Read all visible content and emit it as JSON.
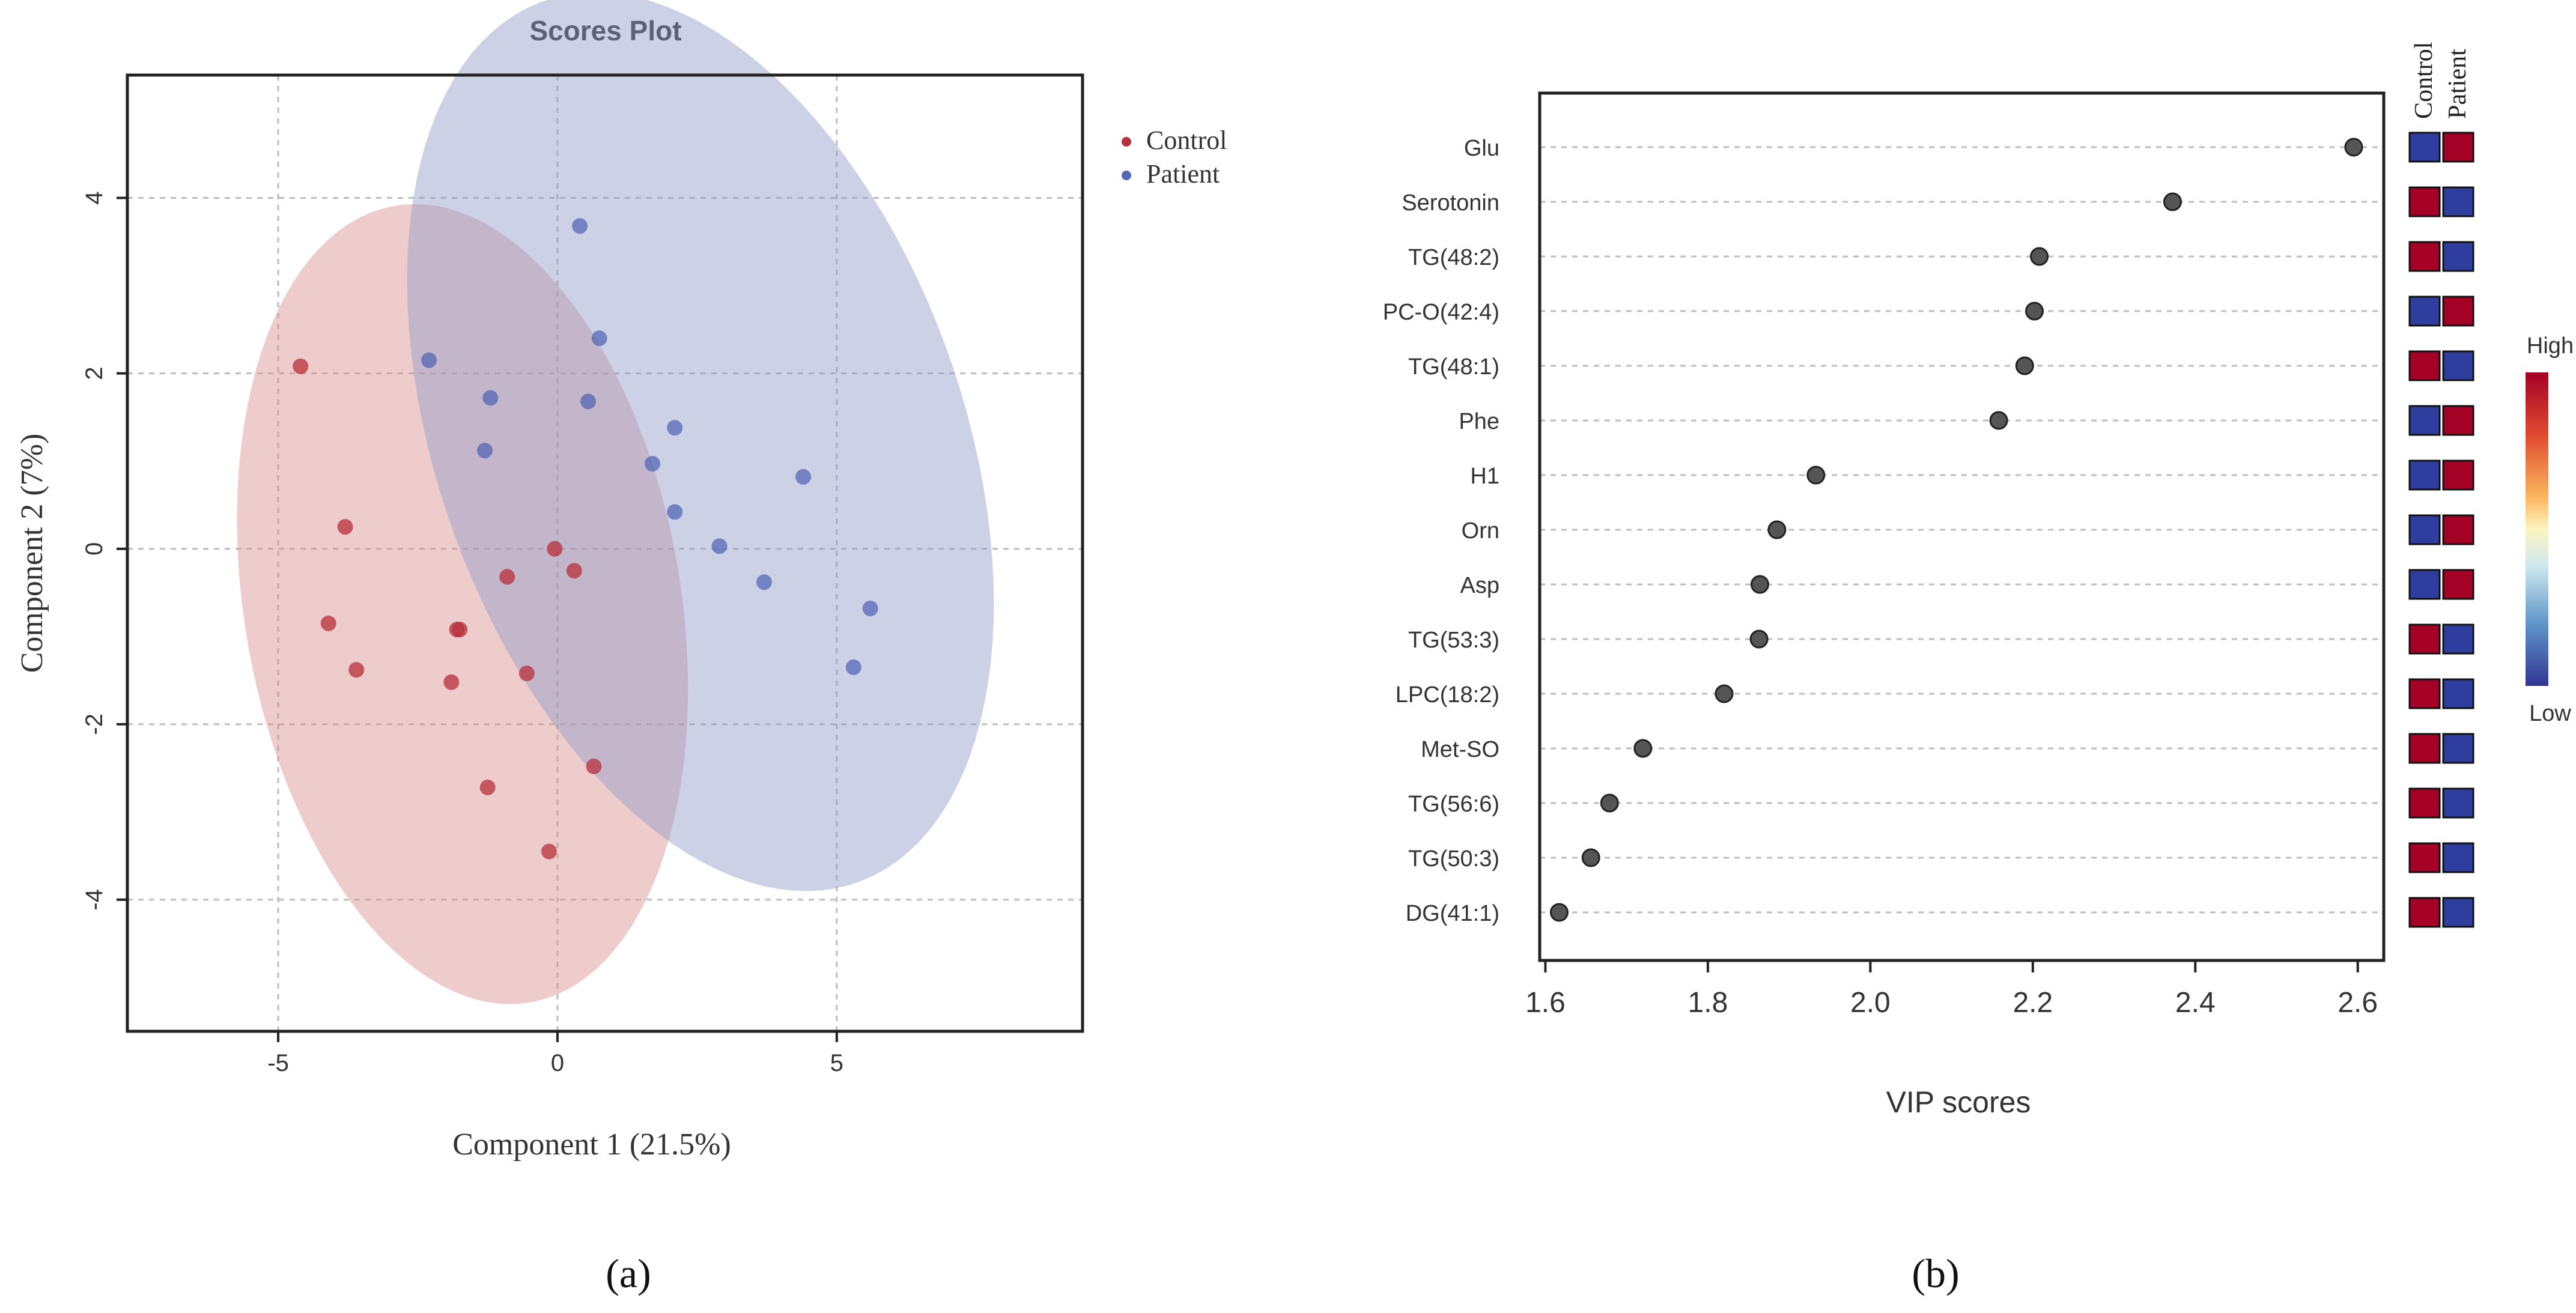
{
  "colors": {
    "control": "#b5303a",
    "patient": "#5467b5",
    "control_ellipse": "#d98e8e",
    "patient_ellipse": "#8d98c8",
    "dot": "#555555",
    "heat_high": "#a50026",
    "heat_low": "#2f3e9e"
  },
  "panel_labels": {
    "a": "(a)",
    "b": "(b)"
  },
  "chart_data": [
    {
      "type": "scatter",
      "title": "Scores Plot",
      "xlabel": "Component 1 (21.5%)",
      "ylabel": "Component 2 (7%)",
      "xlim": [
        -7.7,
        9.4
      ],
      "ylim": [
        -5.5,
        5.4
      ],
      "xticks": [
        -5,
        0,
        5
      ],
      "yticks": [
        -4,
        -2,
        0,
        2,
        4
      ],
      "xtick_labels": [
        "-5",
        "0",
        "5"
      ],
      "ytick_labels": [
        "-4",
        "-2",
        "0",
        "2",
        "4"
      ],
      "grid": true,
      "legend_position": "right",
      "series": [
        {
          "name": "Control",
          "color_key": "control",
          "points": [
            [
              -4.6,
              2.08
            ],
            [
              -3.8,
              0.25
            ],
            [
              -4.1,
              -0.85
            ],
            [
              -3.6,
              -1.38
            ],
            [
              -1.8,
              -0.92
            ],
            [
              -1.75,
              -0.92
            ],
            [
              -1.9,
              -1.52
            ],
            [
              -0.9,
              -0.32
            ],
            [
              -0.55,
              -1.42
            ],
            [
              -1.25,
              -2.72
            ],
            [
              0.65,
              -2.48
            ],
            [
              -0.15,
              -3.45
            ],
            [
              -0.05,
              0.0
            ],
            [
              0.3,
              -0.25
            ]
          ],
          "ellipse": {
            "center": [
              -1.7,
              -0.63
            ],
            "semi_major": 4.8,
            "semi_minor": 3.75,
            "angle_deg": -60
          }
        },
        {
          "name": "Patient",
          "color_key": "patient",
          "points": [
            [
              0.4,
              3.68
            ],
            [
              0.75,
              2.4
            ],
            [
              -2.3,
              2.15
            ],
            [
              -1.2,
              1.72
            ],
            [
              0.55,
              1.68
            ],
            [
              2.1,
              1.38
            ],
            [
              -1.3,
              1.12
            ],
            [
              1.7,
              0.97
            ],
            [
              4.4,
              0.82
            ],
            [
              2.1,
              0.42
            ],
            [
              2.9,
              0.03
            ],
            [
              3.7,
              -0.38
            ],
            [
              5.6,
              -0.68
            ],
            [
              5.3,
              -1.35
            ]
          ],
          "ellipse": {
            "center": [
              2.56,
              1.22
            ],
            "semi_major": 6.05,
            "semi_minor": 4.15,
            "angle_deg": -43
          }
        }
      ]
    },
    {
      "type": "scatter",
      "subtype": "dot-plot",
      "xlabel": "VIP scores",
      "ylabel": "",
      "xlim": [
        1.593,
        2.632
      ],
      "xticks": [
        1.6,
        1.8,
        2.0,
        2.2,
        2.4,
        2.6
      ],
      "xtick_labels": [
        "1.6",
        "1.8",
        "2.0",
        "2.2",
        "2.4",
        "2.6"
      ],
      "grid": true,
      "categories": [
        "Glu",
        "Serotonin",
        "TG(48:2)",
        "PC-O(42:4)",
        "TG(48:1)",
        "Phe",
        "H1",
        "Orn",
        "Asp",
        "TG(53:3)",
        "LPC(18:2)",
        "Met-SO",
        "TG(56:6)",
        "TG(50:3)",
        "DG(41:1)"
      ],
      "values": [
        2.595,
        2.372,
        2.208,
        2.202,
        2.19,
        2.158,
        1.933,
        1.885,
        1.864,
        1.863,
        1.82,
        1.72,
        1.679,
        1.656,
        1.617
      ],
      "heatmap": {
        "columns": [
          "Control",
          "Patient"
        ],
        "levels": [
          [
            "low",
            "high"
          ],
          [
            "high",
            "low"
          ],
          [
            "high",
            "low"
          ],
          [
            "low",
            "high"
          ],
          [
            "high",
            "low"
          ],
          [
            "low",
            "high"
          ],
          [
            "low",
            "high"
          ],
          [
            "low",
            "high"
          ],
          [
            "low",
            "high"
          ],
          [
            "high",
            "low"
          ],
          [
            "high",
            "low"
          ],
          [
            "high",
            "low"
          ],
          [
            "high",
            "low"
          ],
          [
            "high",
            "low"
          ],
          [
            "high",
            "low"
          ]
        ]
      },
      "colorbar": {
        "high_label": "High",
        "low_label": "Low"
      }
    }
  ]
}
